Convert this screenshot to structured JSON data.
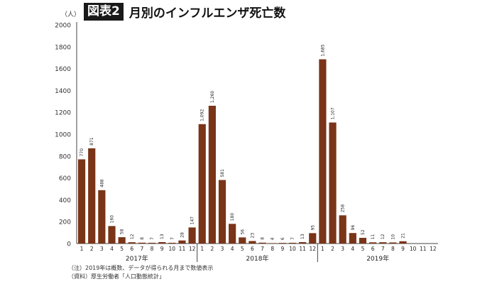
{
  "header": {
    "badge": "図表2",
    "title": "月別のインフルエンザ死亡数"
  },
  "chart_data": {
    "type": "bar",
    "title": "月別のインフルエンザ死亡数",
    "yunit": "（人）",
    "ylim": [
      0,
      2000
    ],
    "yticks": [
      0,
      200,
      400,
      600,
      800,
      1000,
      1200,
      1400,
      1600,
      1800,
      2000
    ],
    "bar_color": "#7a3418",
    "groups": [
      {
        "label": "2017年",
        "months": [
          "1",
          "2",
          "3",
          "4",
          "5",
          "6",
          "7",
          "8",
          "9",
          "10",
          "11",
          "12"
        ],
        "values": [
          770,
          871,
          488,
          160,
          58,
          12,
          8,
          7,
          13,
          7,
          28,
          147
        ],
        "labels": [
          "770",
          "871",
          "488",
          "160",
          "58",
          "12",
          "8",
          "7",
          "13",
          "7",
          "28",
          "147"
        ]
      },
      {
        "label": "2018年",
        "months": [
          "1",
          "2",
          "3",
          "4",
          "5",
          "6",
          "7",
          "8",
          "9",
          "10",
          "11",
          "12"
        ],
        "values": [
          1092,
          1260,
          581,
          180,
          56,
          23,
          8,
          4,
          6,
          7,
          13,
          95
        ],
        "labels": [
          "1,092",
          "1,260",
          "581",
          "180",
          "56",
          "23",
          "8",
          "4",
          "6",
          "7",
          "13",
          "95"
        ]
      },
      {
        "label": "2019年",
        "months": [
          "1",
          "2",
          "3",
          "4",
          "5",
          "6",
          "7",
          "8",
          "9",
          "10",
          "11",
          "12"
        ],
        "values": [
          1685,
          1107,
          258,
          96,
          52,
          11,
          12,
          10,
          21,
          null,
          null,
          null
        ],
        "labels": [
          "1,685",
          "1,107",
          "258",
          "96",
          "52",
          "11",
          "12",
          "10",
          "21",
          "",
          "",
          ""
        ]
      }
    ]
  },
  "notes": {
    "line1": "（注）2019年は概数、データが得られる月まで数値表示",
    "line2": "（資料）厚生労働者「人口動態統計」"
  }
}
